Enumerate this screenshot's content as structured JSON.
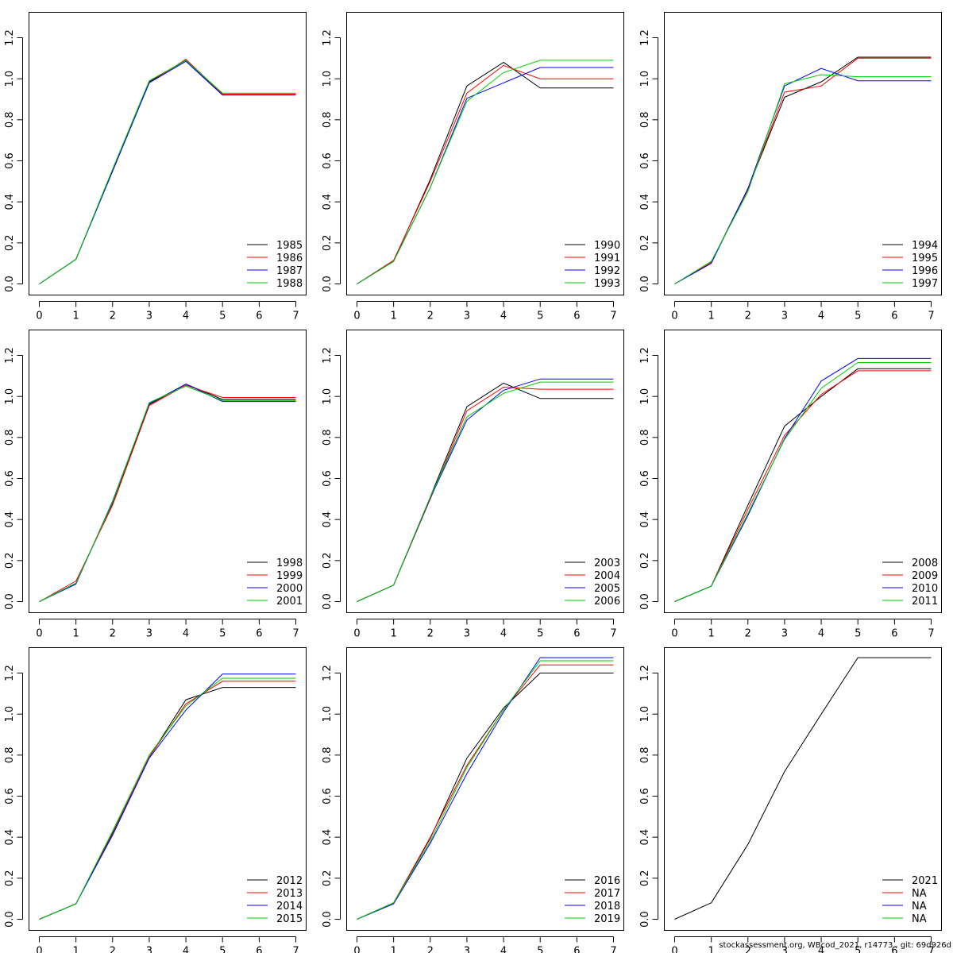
{
  "footer": "stockassessment.org, WBcod_2021, r14773 , git: 69d926d",
  "colors": [
    "#000000",
    "#ff0000",
    "#0000ff",
    "#00cc00"
  ],
  "chart_data": [
    {
      "type": "line",
      "x": [
        0,
        1,
        2,
        3,
        4,
        5,
        6,
        7
      ],
      "ylim": [
        0,
        1.3
      ],
      "xlim": [
        0,
        7
      ],
      "legend_position": "bottom-right",
      "series": [
        {
          "name": "1985",
          "values": [
            0,
            0.12,
            0.55,
            0.985,
            1.09,
            0.925,
            0.925,
            0.925
          ]
        },
        {
          "name": "1986",
          "values": [
            0,
            0.12,
            0.555,
            0.98,
            1.095,
            0.925,
            0.925,
            0.925
          ]
        },
        {
          "name": "1987",
          "values": [
            0,
            0.12,
            0.55,
            0.98,
            1.085,
            0.92,
            0.92,
            0.92
          ]
        },
        {
          "name": "1988",
          "values": [
            0,
            0.12,
            0.56,
            0.99,
            1.09,
            0.93,
            0.93,
            0.93
          ]
        }
      ]
    },
    {
      "type": "line",
      "x": [
        0,
        1,
        2,
        3,
        4,
        5,
        6,
        7
      ],
      "ylim": [
        0,
        1.3
      ],
      "xlim": [
        0,
        7
      ],
      "legend_position": "bottom-right",
      "series": [
        {
          "name": "1990",
          "values": [
            0,
            0.11,
            0.51,
            0.965,
            1.08,
            0.955,
            0.955,
            0.955
          ]
        },
        {
          "name": "1991",
          "values": [
            0,
            0.115,
            0.5,
            0.93,
            1.065,
            1.0,
            1.0,
            1.0
          ]
        },
        {
          "name": "1992",
          "values": [
            0,
            0.11,
            0.47,
            0.905,
            0.98,
            1.055,
            1.055,
            1.055
          ]
        },
        {
          "name": "1993",
          "values": [
            0,
            0.11,
            0.47,
            0.89,
            1.03,
            1.09,
            1.09,
            1.09
          ]
        }
      ]
    },
    {
      "type": "line",
      "x": [
        0,
        1,
        2,
        3,
        4,
        5,
        6,
        7
      ],
      "ylim": [
        0,
        1.3
      ],
      "xlim": [
        0,
        7
      ],
      "legend_position": "bottom-right",
      "series": [
        {
          "name": "1994",
          "values": [
            0,
            0.105,
            0.465,
            0.91,
            0.985,
            1.105,
            1.105,
            1.105
          ]
        },
        {
          "name": "1995",
          "values": [
            0,
            0.105,
            0.46,
            0.935,
            0.965,
            1.1,
            1.1,
            1.1
          ]
        },
        {
          "name": "1996",
          "values": [
            0,
            0.1,
            0.465,
            0.965,
            1.05,
            0.99,
            0.99,
            0.99
          ]
        },
        {
          "name": "1997",
          "values": [
            0,
            0.11,
            0.45,
            0.975,
            1.02,
            1.01,
            1.01,
            1.01
          ]
        }
      ]
    },
    {
      "type": "line",
      "x": [
        0,
        1,
        2,
        3,
        4,
        5,
        6,
        7
      ],
      "ylim": [
        0,
        1.3
      ],
      "xlim": [
        0,
        7
      ],
      "legend_position": "bottom-right",
      "series": [
        {
          "name": "1998",
          "values": [
            0,
            0.09,
            0.48,
            0.96,
            1.06,
            0.985,
            0.985,
            0.985
          ]
        },
        {
          "name": "1999",
          "values": [
            0,
            0.1,
            0.47,
            0.955,
            1.055,
            0.995,
            0.995,
            0.995
          ]
        },
        {
          "name": "2000",
          "values": [
            0,
            0.085,
            0.49,
            0.965,
            1.06,
            0.975,
            0.975,
            0.975
          ]
        },
        {
          "name": "2001",
          "values": [
            0,
            0.09,
            0.485,
            0.97,
            1.05,
            0.98,
            0.98,
            0.98
          ]
        }
      ]
    },
    {
      "type": "line",
      "x": [
        0,
        1,
        2,
        3,
        4,
        5,
        6,
        7
      ],
      "ylim": [
        0,
        1.3
      ],
      "xlim": [
        0,
        7
      ],
      "legend_position": "bottom-right",
      "series": [
        {
          "name": "2003",
          "values": [
            0,
            0.08,
            0.51,
            0.95,
            1.065,
            0.99,
            0.99,
            0.99
          ]
        },
        {
          "name": "2004",
          "values": [
            0,
            0.08,
            0.5,
            0.93,
            1.045,
            1.035,
            1.035,
            1.035
          ]
        },
        {
          "name": "2005",
          "values": [
            0,
            0.08,
            0.505,
            0.885,
            1.03,
            1.085,
            1.085,
            1.085
          ]
        },
        {
          "name": "2006",
          "values": [
            0,
            0.08,
            0.51,
            0.9,
            1.015,
            1.07,
            1.07,
            1.07
          ]
        }
      ]
    },
    {
      "type": "line",
      "x": [
        0,
        1,
        2,
        3,
        4,
        5,
        6,
        7
      ],
      "ylim": [
        0,
        1.3
      ],
      "xlim": [
        0,
        7
      ],
      "legend_position": "bottom-right",
      "series": [
        {
          "name": "2008",
          "values": [
            0,
            0.075,
            0.47,
            0.855,
            1.0,
            1.135,
            1.135,
            1.135
          ]
        },
        {
          "name": "2009",
          "values": [
            0,
            0.075,
            0.45,
            0.81,
            1.01,
            1.125,
            1.125,
            1.125
          ]
        },
        {
          "name": "2010",
          "values": [
            0,
            0.075,
            0.42,
            0.795,
            1.075,
            1.185,
            1.185,
            1.185
          ]
        },
        {
          "name": "2011",
          "values": [
            0,
            0.075,
            0.43,
            0.79,
            1.04,
            1.165,
            1.165,
            1.165
          ]
        }
      ]
    },
    {
      "type": "line",
      "x": [
        0,
        1,
        2,
        3,
        4,
        5,
        6,
        7
      ],
      "ylim": [
        0,
        1.3
      ],
      "xlim": [
        0,
        7
      ],
      "legend_position": "bottom-right",
      "series": [
        {
          "name": "2012",
          "values": [
            0,
            0.075,
            0.42,
            0.79,
            1.07,
            1.13,
            1.13,
            1.13
          ]
        },
        {
          "name": "2013",
          "values": [
            0,
            0.075,
            0.415,
            0.79,
            1.05,
            1.16,
            1.16,
            1.16
          ]
        },
        {
          "name": "2014",
          "values": [
            0,
            0.075,
            0.41,
            0.785,
            1.02,
            1.195,
            1.195,
            1.195
          ]
        },
        {
          "name": "2015",
          "values": [
            0,
            0.075,
            0.43,
            0.8,
            1.04,
            1.175,
            1.175,
            1.175
          ]
        }
      ]
    },
    {
      "type": "line",
      "x": [
        0,
        1,
        2,
        3,
        4,
        5,
        6,
        7
      ],
      "ylim": [
        0,
        1.3
      ],
      "xlim": [
        0,
        7
      ],
      "legend_position": "bottom-right",
      "series": [
        {
          "name": "2016",
          "values": [
            0,
            0.08,
            0.395,
            0.785,
            1.03,
            1.2,
            1.2,
            1.2
          ]
        },
        {
          "name": "2017",
          "values": [
            0,
            0.08,
            0.4,
            0.75,
            1.02,
            1.24,
            1.24,
            1.24
          ]
        },
        {
          "name": "2018",
          "values": [
            0,
            0.075,
            0.37,
            0.71,
            1.01,
            1.275,
            1.275,
            1.275
          ]
        },
        {
          "name": "2019",
          "values": [
            0,
            0.08,
            0.38,
            0.74,
            1.02,
            1.26,
            1.26,
            1.26
          ]
        }
      ]
    },
    {
      "type": "line",
      "x": [
        0,
        1,
        2,
        3,
        4,
        5,
        6,
        7
      ],
      "ylim": [
        0,
        1.3
      ],
      "xlim": [
        0,
        7
      ],
      "legend_position": "bottom-right",
      "series": [
        {
          "name": "2021",
          "values": [
            0,
            0.08,
            0.365,
            0.72,
            1.0,
            1.275,
            1.275,
            1.275
          ]
        },
        {
          "name": "NA",
          "values": null
        },
        {
          "name": "NA",
          "values": null
        },
        {
          "name": "NA",
          "values": null
        }
      ]
    }
  ]
}
